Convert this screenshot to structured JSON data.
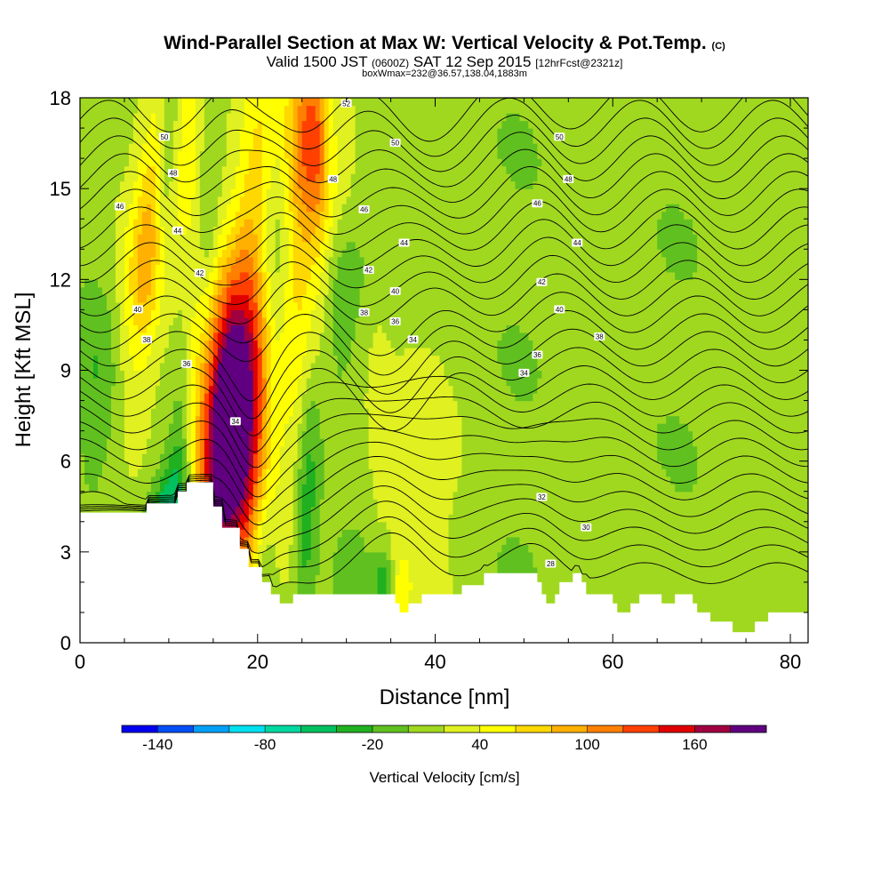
{
  "title": {
    "line1": "Wind-Parallel Section at Max W: Vertical Velocity & Pot.Temp.",
    "line1_mark": "(C)",
    "line2_a": "Valid 1500 JST",
    "line2_b": "(0600Z)",
    "line2_c": "SAT 12 Sep 2015",
    "line2_d": "[12hrFcst@2321z]",
    "line3": "boxWmax=232@36.57,138.04,1883m"
  },
  "chart_data": {
    "type": "heatmap",
    "xlabel": "Distance [nm]",
    "ylabel": "Height [Kft MSL]",
    "xlim": [
      0,
      82
    ],
    "ylim": [
      0,
      18
    ],
    "x_ticks": [
      "0",
      "20",
      "40",
      "60",
      "80"
    ],
    "y_ticks": [
      "0",
      "3",
      "6",
      "9",
      "12",
      "15",
      "18"
    ],
    "colorbar": {
      "title": "Vertical Velocity [cm/s]",
      "levels": [
        -160,
        -140,
        -120,
        -100,
        -80,
        -60,
        -40,
        -20,
        0,
        20,
        40,
        60,
        80,
        100,
        120,
        140,
        160,
        180,
        200
      ],
      "labels": [
        "-140",
        "-80",
        "-20",
        "40",
        "100",
        "160"
      ],
      "colors": [
        "#0000f0",
        "#0050f8",
        "#00a0f8",
        "#00e0f0",
        "#00d8a0",
        "#00c060",
        "#20b020",
        "#60c020",
        "#a0d820",
        "#e0f020",
        "#ffff00",
        "#ffd800",
        "#ffb000",
        "#ff8000",
        "#ff4000",
        "#e00000",
        "#a00040",
        "#600080"
      ]
    },
    "terrain_kft": [
      [
        0,
        4.3
      ],
      [
        15,
        4.3
      ],
      [
        15,
        4.6
      ],
      [
        22,
        4.6
      ],
      [
        22,
        5.0
      ],
      [
        24,
        5.0
      ],
      [
        24,
        5.3
      ],
      [
        30,
        5.3
      ],
      [
        30,
        4.5
      ],
      [
        32,
        4.5
      ],
      [
        32,
        3.8
      ],
      [
        36,
        3.8
      ],
      [
        36,
        3.1
      ],
      [
        38,
        3.1
      ],
      [
        38,
        2.5
      ],
      [
        41,
        2.5
      ],
      [
        41,
        2.0
      ],
      [
        43,
        2.0
      ],
      [
        43,
        1.6
      ],
      [
        45,
        1.6
      ],
      [
        45,
        1.3
      ],
      [
        48,
        1.3
      ],
      [
        48,
        1.6
      ],
      [
        71,
        1.6
      ],
      [
        71,
        1.3
      ],
      [
        72,
        1.3
      ],
      [
        72,
        1.0
      ],
      [
        74,
        1.0
      ],
      [
        74,
        1.3
      ],
      [
        77,
        1.3
      ],
      [
        77,
        1.6
      ],
      [
        86,
        1.6
      ],
      [
        86,
        1.9
      ],
      [
        91,
        1.9
      ],
      [
        91,
        2.3
      ],
      [
        103,
        2.3
      ],
      [
        103,
        2.0
      ],
      [
        104,
        2.0
      ],
      [
        104,
        1.6
      ],
      [
        105,
        1.6
      ],
      [
        105,
        1.3
      ],
      [
        107,
        1.3
      ],
      [
        107,
        1.6
      ],
      [
        108,
        1.6
      ],
      [
        108,
        2.0
      ],
      [
        111,
        2.0
      ],
      [
        111,
        2.3
      ],
      [
        113,
        2.3
      ],
      [
        113,
        2.0
      ],
      [
        114,
        2.0
      ],
      [
        114,
        1.6
      ],
      [
        120,
        1.6
      ],
      [
        120,
        1.3
      ],
      [
        121,
        1.3
      ],
      [
        121,
        1.0
      ],
      [
        124,
        1.0
      ],
      [
        124,
        1.3
      ],
      [
        126,
        1.3
      ],
      [
        126,
        1.6
      ],
      [
        131,
        1.6
      ],
      [
        131,
        1.3
      ],
      [
        134,
        1.3
      ],
      [
        134,
        1.6
      ],
      [
        138,
        1.6
      ],
      [
        138,
        1.3
      ],
      [
        139,
        1.3
      ],
      [
        139,
        1.0
      ],
      [
        142,
        1.0
      ],
      [
        142,
        0.7
      ],
      [
        147,
        0.7
      ],
      [
        147,
        0.35
      ],
      [
        152,
        0.35
      ],
      [
        152,
        0.7
      ],
      [
        155,
        0.7
      ],
      [
        155,
        1.0
      ],
      [
        164,
        1.0
      ]
    ],
    "theta_labels": [
      {
        "x": 19,
        "y": 16.7,
        "text": "50"
      },
      {
        "x": 21,
        "y": 15.5,
        "text": "48"
      },
      {
        "x": 9,
        "y": 14.4,
        "text": "46"
      },
      {
        "x": 22,
        "y": 13.6,
        "text": "44"
      },
      {
        "x": 27,
        "y": 12.2,
        "text": "42"
      },
      {
        "x": 13,
        "y": 11.0,
        "text": "40"
      },
      {
        "x": 15,
        "y": 10.0,
        "text": "38"
      },
      {
        "x": 24,
        "y": 9.2,
        "text": "36"
      },
      {
        "x": 35,
        "y": 7.3,
        "text": "34"
      },
      {
        "x": 60,
        "y": 17.8,
        "text": "52"
      },
      {
        "x": 71,
        "y": 16.5,
        "text": "50"
      },
      {
        "x": 57,
        "y": 15.3,
        "text": "48"
      },
      {
        "x": 64,
        "y": 14.3,
        "text": "46"
      },
      {
        "x": 73,
        "y": 13.2,
        "text": "44"
      },
      {
        "x": 65,
        "y": 12.3,
        "text": "42"
      },
      {
        "x": 71,
        "y": 11.6,
        "text": "40"
      },
      {
        "x": 64,
        "y": 10.9,
        "text": "38"
      },
      {
        "x": 71,
        "y": 10.6,
        "text": "36"
      },
      {
        "x": 75,
        "y": 10.0,
        "text": "34"
      },
      {
        "x": 108,
        "y": 16.7,
        "text": "50"
      },
      {
        "x": 110,
        "y": 15.3,
        "text": "48"
      },
      {
        "x": 103,
        "y": 14.5,
        "text": "46"
      },
      {
        "x": 112,
        "y": 13.2,
        "text": "44"
      },
      {
        "x": 104,
        "y": 11.9,
        "text": "42"
      },
      {
        "x": 108,
        "y": 11.0,
        "text": "40"
      },
      {
        "x": 117,
        "y": 10.1,
        "text": "38"
      },
      {
        "x": 103,
        "y": 9.5,
        "text": "36"
      },
      {
        "x": 100,
        "y": 8.9,
        "text": "34"
      },
      {
        "x": 104,
        "y": 4.8,
        "text": "32"
      },
      {
        "x": 114,
        "y": 3.8,
        "text": "30"
      },
      {
        "x": 106,
        "y": 2.6,
        "text": "28"
      }
    ],
    "updrafts": [
      {
        "x": 34,
        "y": 7.3,
        "sx": 2.6,
        "sy": 3.1,
        "w": 200,
        "tilt": 0.1
      },
      {
        "x": 35.5,
        "y": 8.9,
        "sx": 4.6,
        "sy": 5.1,
        "w": 35,
        "tilt": 0.18
      },
      {
        "x": 17.6,
        "y": 14.6,
        "sx": 2.0,
        "sy": 3.6,
        "w": 55,
        "tilt": 0.35
      },
      {
        "x": 15.3,
        "y": 12.6,
        "sx": 1.6,
        "sy": 2.6,
        "w": 40,
        "tilt": 0.3
      },
      {
        "x": 54.4,
        "y": 15.6,
        "sx": 1.9,
        "sy": 3.5,
        "w": 55,
        "tilt": 0.12
      },
      {
        "x": 52.8,
        "y": 17.1,
        "sx": 2.2,
        "sy": 2.3,
        "w": 70,
        "tilt": 0.0
      },
      {
        "x": 39.6,
        "y": 15.3,
        "sx": 1.6,
        "sy": 4.4,
        "w": 40,
        "tilt": 0.25
      },
      {
        "x": 25.5,
        "y": 16.2,
        "sx": 1.4,
        "sy": 2.5,
        "w": 35,
        "tilt": 0.05
      },
      {
        "x": 48.6,
        "y": 12.4,
        "sx": 1.4,
        "sy": 4.6,
        "w": 25,
        "tilt": 0.1
      },
      {
        "x": 31.5,
        "y": 3.6,
        "sx": 1.2,
        "sy": 2.2,
        "w": 40,
        "tilt": 0.0
      },
      {
        "x": 37.8,
        "y": 3.5,
        "sx": 1.0,
        "sy": 2.0,
        "w": 30,
        "tilt": 0.0
      },
      {
        "x": 67.1,
        "y": 8.0,
        "sx": 1.0,
        "sy": 2.6,
        "w": 20,
        "tilt": 0.0
      },
      {
        "x": 72.4,
        "y": 1.8,
        "sx": 0.7,
        "sy": 0.8,
        "w": 25,
        "tilt": 0.0
      },
      {
        "x": 74.3,
        "y": 4.6,
        "sx": 3.4,
        "sy": 3.8,
        "w": 25,
        "tilt": 0.0
      }
    ],
    "downdrafts": [
      {
        "x": 18.6,
        "y": 3.6,
        "sx": 1.5,
        "sy": 1.9,
        "w": -85,
        "tilt": 0.6
      },
      {
        "x": 19.5,
        "y": 15.5,
        "sx": 0.9,
        "sy": 2.8,
        "w": -60,
        "tilt": 0.2
      },
      {
        "x": 22.6,
        "y": 5.6,
        "sx": 0.9,
        "sy": 3.9,
        "w": -30,
        "tilt": 0.0
      },
      {
        "x": 51.1,
        "y": 4.3,
        "sx": 0.9,
        "sy": 3.4,
        "w": -45,
        "tilt": 0.1
      },
      {
        "x": 44.0,
        "y": 11.8,
        "sx": 1.2,
        "sy": 3.3,
        "w": -40,
        "tilt": 0.0
      },
      {
        "x": 56.5,
        "y": 17.3,
        "sx": 0.9,
        "sy": 1.8,
        "w": -55,
        "tilt": 0.0
      },
      {
        "x": 41.0,
        "y": 3.1,
        "sx": 1.2,
        "sy": 1.7,
        "w": -35,
        "tilt": 0.0
      },
      {
        "x": 28.7,
        "y": 13.6,
        "sx": 0.9,
        "sy": 3.7,
        "w": -30,
        "tilt": 0.0
      },
      {
        "x": 4.2,
        "y": 8.5,
        "sx": 1.7,
        "sy": 2.5,
        "w": -32,
        "tilt": 0.0
      },
      {
        "x": 68.3,
        "y": 1.9,
        "sx": 0.7,
        "sy": 0.8,
        "w": -55,
        "tilt": 0.0
      },
      {
        "x": 58.0,
        "y": 11.6,
        "sx": 1.3,
        "sy": 2.4,
        "w": -25,
        "tilt": 0.0
      },
      {
        "x": 62.0,
        "y": 2.1,
        "sx": 2.0,
        "sy": 1.0,
        "w": -25,
        "tilt": 0.0
      }
    ]
  }
}
